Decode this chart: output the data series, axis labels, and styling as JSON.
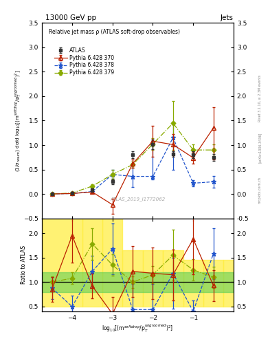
{
  "title_top": "13000 GeV pp",
  "title_right": "Jets",
  "plot_title": "Relative jet mass ρ (ATLAS soft-drop observables)",
  "watermark": "ATLAS_2019_I1772062",
  "right_label_1": "Rivet 3.1.10, ≥ 2.3M events",
  "right_label_2": "[arXiv:1306.3436]",
  "right_label_3": "mcplots.cern.ch",
  "ylabel_main": "(1/σ$_{resum}$) dσ/d log$_{10}$[(m$^{soft drop}$/p$_T^{ungroomed}$)$^2$]",
  "ylabel_ratio": "Ratio to ATLAS",
  "xlabel": "log$_{10}$[(m$^{soft drop}$/p$_T^{ungroomed}$)$^2$]",
  "xlim": [
    -4.75,
    -0.0
  ],
  "ylim_main": [
    -0.5,
    3.5
  ],
  "ylim_ratio": [
    0.4,
    2.3
  ],
  "x_pts": [
    -4.5,
    -4.0,
    -3.5,
    -3.0,
    -2.5,
    -2.0,
    -1.5,
    -1.0,
    -0.5
  ],
  "y_atlas": [
    0.0,
    0.02,
    0.08,
    0.25,
    0.8,
    1.01,
    0.82,
    0.8,
    0.75
  ],
  "ye_atlas": [
    0.01,
    0.02,
    0.03,
    0.05,
    0.07,
    0.1,
    0.06,
    0.07,
    0.07
  ],
  "y_p370": [
    0.0,
    0.01,
    0.04,
    -0.22,
    0.62,
    1.08,
    1.01,
    0.74,
    1.35
  ],
  "ye_p370_lo": [
    0.01,
    0.01,
    0.03,
    0.18,
    0.09,
    0.32,
    0.22,
    0.12,
    0.65
  ],
  "ye_p370_hi": [
    0.01,
    0.01,
    0.03,
    0.12,
    0.09,
    0.32,
    0.22,
    0.12,
    0.42
  ],
  "y_p378": [
    0.0,
    0.01,
    0.05,
    0.4,
    0.36,
    0.36,
    1.15,
    0.22,
    0.25
  ],
  "ye_p378_lo": [
    0.01,
    0.01,
    0.02,
    0.09,
    0.22,
    0.06,
    0.65,
    0.06,
    0.12
  ],
  "ye_p378_hi": [
    0.01,
    0.01,
    0.02,
    0.09,
    0.22,
    0.72,
    0.32,
    0.06,
    0.12
  ],
  "y_p379": [
    0.0,
    0.02,
    0.16,
    0.4,
    0.6,
    1.02,
    1.45,
    0.9,
    0.9
  ],
  "ye_p379_lo": [
    0.01,
    0.01,
    0.04,
    0.09,
    0.06,
    0.12,
    0.55,
    0.12,
    0.12
  ],
  "ye_p379_hi": [
    0.01,
    0.01,
    0.04,
    0.09,
    0.06,
    0.12,
    0.45,
    0.12,
    0.12
  ],
  "color_atlas": "#333333",
  "color_p370": "#bb2200",
  "color_p378": "#2255cc",
  "color_p379": "#88aa00",
  "r_p370": [
    0.85,
    1.95,
    0.92,
    0.35,
    1.22,
    1.18,
    1.15,
    1.88,
    0.93
  ],
  "re_p370_lo": [
    0.25,
    0.55,
    0.25,
    0.35,
    0.52,
    0.52,
    0.52,
    0.72,
    0.32
  ],
  "re_p370_hi": [
    0.25,
    0.55,
    0.25,
    0.35,
    0.52,
    0.52,
    0.52,
    0.52,
    0.32
  ],
  "r_p378": [
    0.88,
    0.5,
    1.22,
    1.68,
    0.44,
    0.44,
    1.18,
    0.4,
    1.58
  ],
  "re_p378_lo": [
    0.22,
    0.22,
    0.32,
    0.52,
    0.52,
    0.32,
    0.72,
    0.22,
    0.52
  ],
  "re_p378_hi": [
    0.22,
    0.22,
    0.32,
    0.52,
    0.52,
    0.52,
    0.32,
    0.22,
    0.52
  ],
  "r_p379": [
    1.0,
    1.08,
    1.78,
    1.35,
    1.0,
    1.15,
    1.55,
    1.25,
    1.1
  ],
  "re_p379_lo": [
    0.12,
    0.12,
    0.32,
    0.22,
    0.12,
    0.18,
    0.52,
    0.22,
    0.22
  ],
  "re_p379_hi": [
    0.12,
    0.12,
    0.32,
    0.22,
    0.12,
    0.18,
    0.52,
    0.22,
    0.22
  ],
  "yellow_step_edges": [
    -4.75,
    -3.75,
    -3.25,
    -2.75,
    -2.25,
    -1.75,
    -1.25,
    -0.75,
    -0.25,
    0.0
  ],
  "yellow_step_hi": [
    2.3,
    2.3,
    2.3,
    1.65,
    1.65,
    1.65,
    1.45,
    1.45,
    1.45
  ],
  "yellow_step_lo": [
    0.5,
    0.5,
    0.5,
    0.5,
    0.5,
    0.5,
    0.5,
    0.5,
    0.5
  ],
  "xticks": [
    -4,
    -3,
    -2,
    -1
  ],
  "yticks_main": [
    -0.5,
    0.0,
    0.5,
    1.0,
    1.5,
    2.0,
    2.5,
    3.0,
    3.5
  ],
  "yticks_ratio": [
    0.5,
    1.0,
    1.5,
    2.0
  ]
}
